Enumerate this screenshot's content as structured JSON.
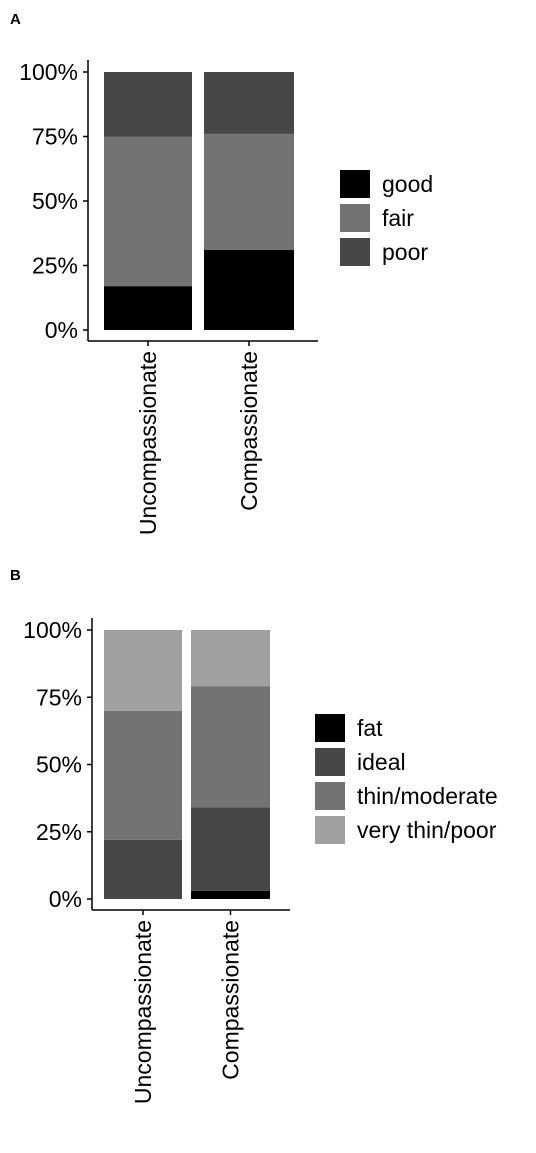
{
  "chart_data": [
    {
      "panel": "A",
      "type": "bar",
      "stacked": true,
      "categories": [
        "Uncompassionate",
        "Compassionate"
      ],
      "y_ticks": [
        "0%",
        "25%",
        "50%",
        "75%",
        "100%"
      ],
      "ylim": [
        0,
        1
      ],
      "series": [
        {
          "name": "good",
          "values": [
            0.17,
            0.31
          ],
          "color": "#000000"
        },
        {
          "name": "fair",
          "values": [
            0.58,
            0.45
          ],
          "color": "#737373"
        },
        {
          "name": "poor",
          "values": [
            0.25,
            0.24
          ],
          "color": "#474747"
        }
      ],
      "legend_order": [
        "good",
        "fair",
        "poor"
      ],
      "legend_position": "right",
      "grid": false
    },
    {
      "panel": "B",
      "type": "bar",
      "stacked": true,
      "categories": [
        "Uncompassionate",
        "Compassionate"
      ],
      "y_ticks": [
        "0%",
        "25%",
        "50%",
        "75%",
        "100%"
      ],
      "ylim": [
        0,
        1
      ],
      "series": [
        {
          "name": "fat",
          "values": [
            0.0,
            0.03
          ],
          "color": "#000000"
        },
        {
          "name": "ideal",
          "values": [
            0.22,
            0.31
          ],
          "color": "#474747"
        },
        {
          "name": "thin/moderate",
          "values": [
            0.48,
            0.45
          ],
          "color": "#737373"
        },
        {
          "name": "very thin/poor",
          "values": [
            0.3,
            0.21
          ],
          "color": "#a0a0a0"
        }
      ],
      "legend_order": [
        "fat",
        "ideal",
        "thin/moderate",
        "very thin/poor"
      ],
      "legend_position": "right",
      "grid": false
    }
  ]
}
